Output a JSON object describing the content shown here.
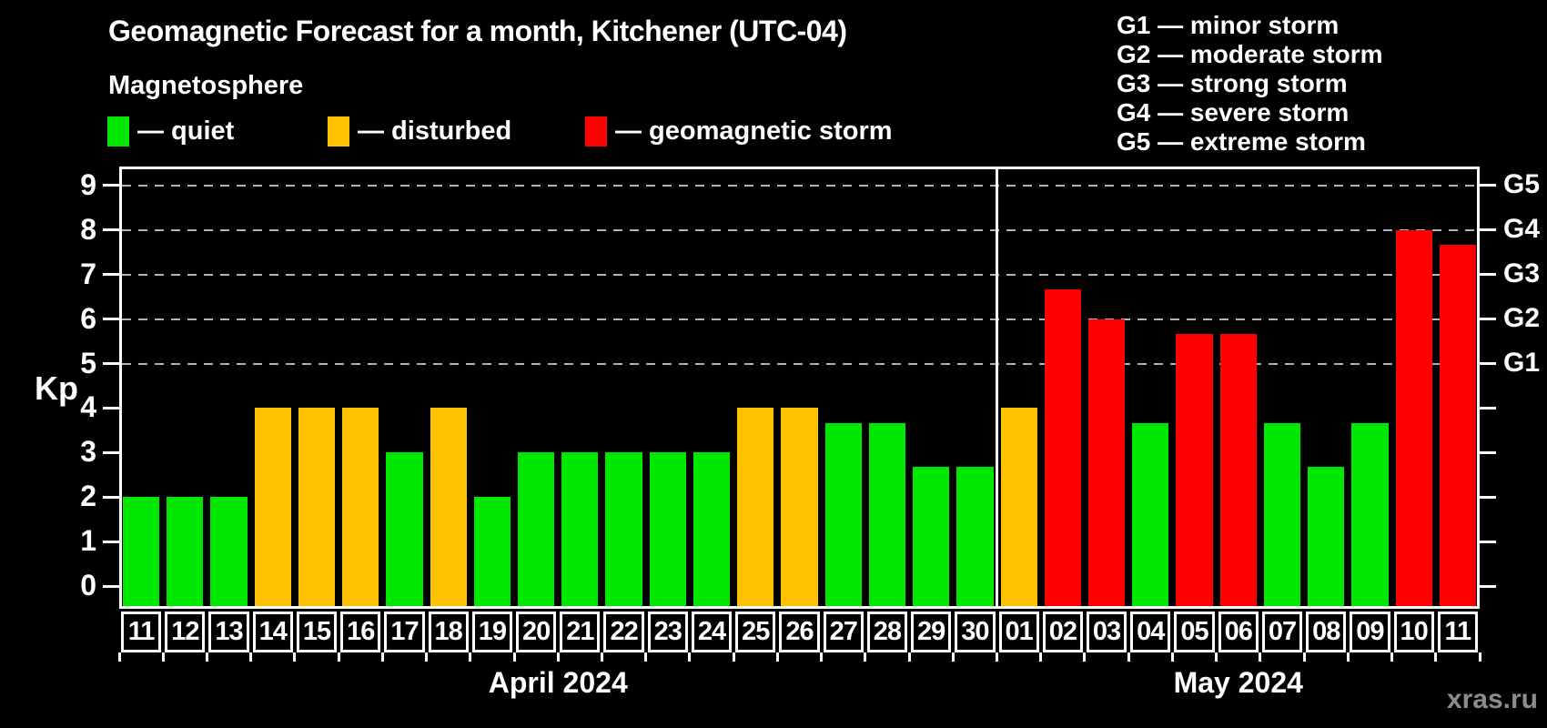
{
  "title": "Geomagnetic Forecast for a month, Kitchener (UTC-04)",
  "legend": {
    "heading": "Magnetosphere",
    "items": [
      {
        "key": "quiet",
        "label": "— quiet",
        "color": "#00e800"
      },
      {
        "key": "disturbed",
        "label": "— disturbed",
        "color": "#ffc200"
      },
      {
        "key": "storm",
        "label": "— geomagnetic storm",
        "color": "#fd0000"
      }
    ]
  },
  "g_legend": [
    "G1 — minor storm",
    "G2 — moderate storm",
    "G3 — strong storm",
    "G4 — severe storm",
    "G5 — extreme storm"
  ],
  "y_axis": {
    "label": "Kp",
    "ticks": [
      0,
      1,
      2,
      3,
      4,
      5,
      6,
      7,
      8,
      9
    ]
  },
  "right_axis_labels": [
    {
      "kp": 5,
      "label": "G1"
    },
    {
      "kp": 6,
      "label": "G2"
    },
    {
      "kp": 7,
      "label": "G3"
    },
    {
      "kp": 8,
      "label": "G4"
    },
    {
      "kp": 9,
      "label": "G5"
    }
  ],
  "watermark": "xras.ru",
  "chart_data": {
    "type": "bar",
    "title": "Geomagnetic Forecast for a month, Kitchener (UTC-04)",
    "ylabel": "Kp",
    "ylim": [
      0,
      9
    ],
    "grid_levels": [
      5,
      6,
      7,
      8,
      9
    ],
    "legend_position": "top",
    "months": [
      {
        "label": "April 2024",
        "start_index": 0,
        "num_days": 20
      },
      {
        "label": "May 2024",
        "start_index": 20,
        "num_days": 11
      }
    ],
    "categories": [
      "11",
      "12",
      "13",
      "14",
      "15",
      "16",
      "17",
      "18",
      "19",
      "20",
      "21",
      "22",
      "23",
      "24",
      "25",
      "26",
      "27",
      "28",
      "29",
      "30",
      "01",
      "02",
      "03",
      "04",
      "05",
      "06",
      "07",
      "08",
      "09",
      "10",
      "11"
    ],
    "values": [
      2,
      2,
      2,
      4,
      4,
      4,
      3,
      4,
      2,
      3,
      3,
      3,
      3,
      3,
      4,
      4,
      3.67,
      3.67,
      2.67,
      2.67,
      4,
      6.67,
      6,
      3.67,
      5.67,
      5.67,
      3.67,
      2.67,
      3.67,
      8,
      7.67
    ],
    "statuses": [
      "quiet",
      "quiet",
      "quiet",
      "disturbed",
      "disturbed",
      "disturbed",
      "quiet",
      "disturbed",
      "quiet",
      "quiet",
      "quiet",
      "quiet",
      "quiet",
      "quiet",
      "disturbed",
      "disturbed",
      "quiet",
      "quiet",
      "quiet",
      "quiet",
      "disturbed",
      "storm",
      "storm",
      "quiet",
      "storm",
      "storm",
      "quiet",
      "quiet",
      "quiet",
      "storm",
      "storm"
    ]
  }
}
